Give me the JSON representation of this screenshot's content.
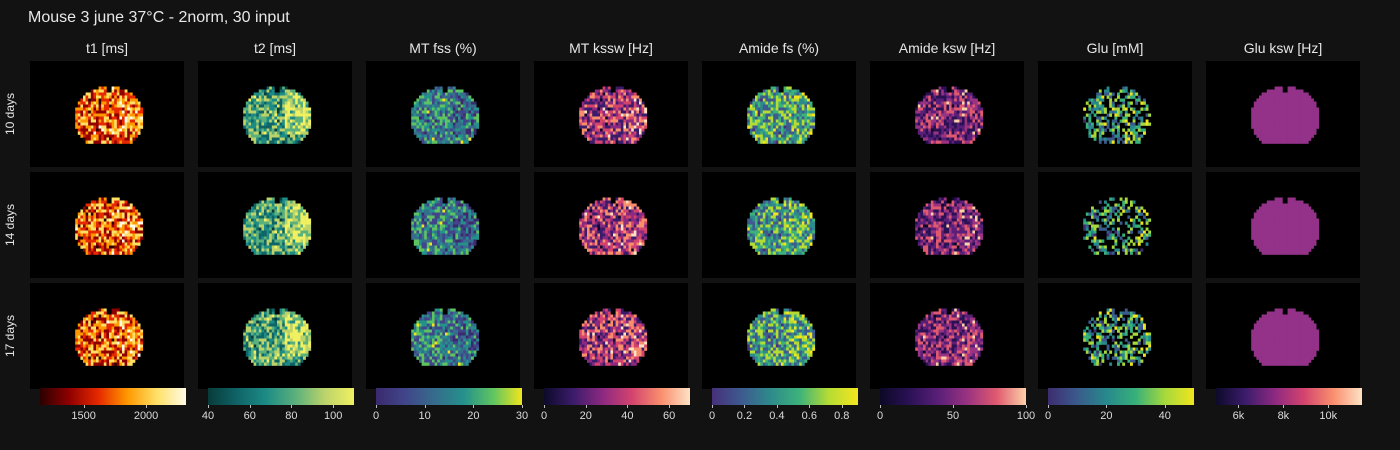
{
  "figure": {
    "title": "Mouse 3 june 37°C - 2norm, 30 input"
  },
  "rows": [
    {
      "label": "10 days"
    },
    {
      "label": "14 days"
    },
    {
      "label": "17 days"
    }
  ],
  "columns": [
    {
      "title": "t1 [ms]",
      "colormap": "hot",
      "colorbar_range": [
        1150,
        2320
      ],
      "ticks": [
        {
          "label": "1500",
          "value": 1500
        },
        {
          "label": "2000",
          "value": 2000
        }
      ],
      "colors": [
        "#2b0000",
        "#8f0000",
        "#e62900",
        "#ff9900",
        "#ffe066",
        "#fffbe6"
      ]
    },
    {
      "title": "t2 [ms]",
      "colormap": "viridis-teal",
      "colorbar_range": [
        40,
        110
      ],
      "ticks": [
        {
          "label": "40",
          "value": 40
        },
        {
          "label": "60",
          "value": 60
        },
        {
          "label": "80",
          "value": 80
        },
        {
          "label": "100",
          "value": 100
        }
      ],
      "colors": [
        "#083b3a",
        "#0f6467",
        "#1d8c86",
        "#5bb07c",
        "#bcd36a",
        "#f0f060"
      ]
    },
    {
      "title": "MT fss (%)",
      "colormap": "viridis",
      "colorbar_range": [
        0,
        30
      ],
      "ticks": [
        {
          "label": "0",
          "value": 0
        },
        {
          "label": "10",
          "value": 10
        },
        {
          "label": "20",
          "value": 20
        },
        {
          "label": "30",
          "value": 30
        }
      ],
      "colors": [
        "#3b2a6e",
        "#41458a",
        "#366c8c",
        "#25908c",
        "#5ec462",
        "#f1e51d"
      ]
    },
    {
      "title": "MT kssw [Hz]",
      "colormap": "magma",
      "colorbar_range": [
        0,
        70
      ],
      "ticks": [
        {
          "label": "0",
          "value": 0
        },
        {
          "label": "20",
          "value": 20
        },
        {
          "label": "40",
          "value": 40
        },
        {
          "label": "60",
          "value": 60
        }
      ],
      "colors": [
        "#0d0a2a",
        "#3b1c6b",
        "#8c2981",
        "#d3436e",
        "#f98e6d",
        "#fde2c4"
      ]
    },
    {
      "title": "Amide fs (%)",
      "colormap": "viridis",
      "colorbar_range": [
        0,
        0.9
      ],
      "ticks": [
        {
          "label": "0",
          "value": 0
        },
        {
          "label": "0.2",
          "value": 0.2
        },
        {
          "label": "0.4",
          "value": 0.4
        },
        {
          "label": "0.6",
          "value": 0.6
        },
        {
          "label": "0.8",
          "value": 0.8
        }
      ],
      "colors": [
        "#46307a",
        "#3e5a8f",
        "#2e8a8b",
        "#3db27a",
        "#b5dc34",
        "#f4e61e"
      ]
    },
    {
      "title": "Amide ksw [Hz]",
      "colormap": "magma",
      "colorbar_range": [
        0,
        100
      ],
      "ticks": [
        {
          "label": "0",
          "value": 0
        },
        {
          "label": "50",
          "value": 50
        },
        {
          "label": "100",
          "value": 100
        }
      ],
      "colors": [
        "#0c0826",
        "#2a1155",
        "#5a1f78",
        "#9a3381",
        "#e05a6f",
        "#fcd1a8"
      ]
    },
    {
      "title": "Glu [mM]",
      "colormap": "viridis",
      "colorbar_range": [
        0,
        50
      ],
      "ticks": [
        {
          "label": "0",
          "value": 0
        },
        {
          "label": "20",
          "value": 20
        },
        {
          "label": "40",
          "value": 40
        }
      ],
      "colors": [
        "#3d2d70",
        "#3a5a8c",
        "#27898c",
        "#37b07a",
        "#a6d83c",
        "#f1e51d"
      ]
    },
    {
      "title": "Glu ksw [Hz]",
      "colormap": "magma",
      "colorbar_range": [
        5000,
        11500
      ],
      "ticks": [
        {
          "label": "6k",
          "value": 6000
        },
        {
          "label": "8k",
          "value": 8000
        },
        {
          "label": "10k",
          "value": 10000
        }
      ],
      "colors": [
        "#94328a",
        "#94328a",
        "#94328a",
        "#94328a",
        "#94328a",
        "#94328a"
      ],
      "cbar_colors": [
        "#0d0a2a",
        "#3b1c6b",
        "#8c2981",
        "#d3436e",
        "#f98e6d",
        "#fde2c4"
      ]
    }
  ]
}
